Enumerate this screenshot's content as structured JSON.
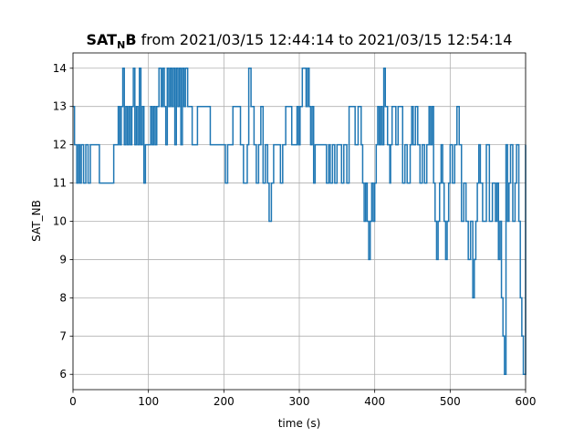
{
  "chart_data": {
    "type": "line",
    "title": {
      "bold_main": "SAT",
      "bold_sub": "N",
      "bold_tail": "B",
      "rest": " from 2021/03/15 12:44:14 to 2021/03/15 12:54:14"
    },
    "xlabel": "time (s)",
    "ylabel": "SAT_NB",
    "xlim": [
      0,
      600
    ],
    "ylim": [
      5.6,
      14.4
    ],
    "xticks": [
      0,
      100,
      200,
      300,
      400,
      500,
      600
    ],
    "yticks": [
      6,
      7,
      8,
      9,
      10,
      11,
      12,
      13,
      14
    ],
    "grid": true,
    "line_color": "#1f77b4",
    "step": true,
    "series": [
      {
        "points": [
          [
            0,
            13
          ],
          [
            2,
            12
          ],
          [
            5,
            11
          ],
          [
            7,
            12
          ],
          [
            9,
            11
          ],
          [
            11,
            12
          ],
          [
            14,
            11
          ],
          [
            17,
            12
          ],
          [
            20,
            11
          ],
          [
            23,
            12
          ],
          [
            35,
            11
          ],
          [
            54,
            12
          ],
          [
            60,
            13
          ],
          [
            62,
            12
          ],
          [
            64,
            13
          ],
          [
            66,
            14
          ],
          [
            68,
            12
          ],
          [
            70,
            13
          ],
          [
            72,
            12
          ],
          [
            74,
            13
          ],
          [
            76,
            12
          ],
          [
            78,
            13
          ],
          [
            80,
            14
          ],
          [
            82,
            12
          ],
          [
            84,
            13
          ],
          [
            86,
            12
          ],
          [
            88,
            14
          ],
          [
            90,
            12
          ],
          [
            92,
            13
          ],
          [
            94,
            11
          ],
          [
            96,
            12
          ],
          [
            103,
            13
          ],
          [
            105,
            12
          ],
          [
            107,
            13
          ],
          [
            109,
            12
          ],
          [
            111,
            13
          ],
          [
            114,
            14
          ],
          [
            117,
            13
          ],
          [
            119,
            14
          ],
          [
            121,
            13
          ],
          [
            123,
            12
          ],
          [
            125,
            14
          ],
          [
            127,
            13
          ],
          [
            129,
            14
          ],
          [
            131,
            13
          ],
          [
            133,
            14
          ],
          [
            135,
            12
          ],
          [
            137,
            14
          ],
          [
            139,
            13
          ],
          [
            141,
            14
          ],
          [
            143,
            12
          ],
          [
            145,
            14
          ],
          [
            147,
            13
          ],
          [
            149,
            14
          ],
          [
            152,
            13
          ],
          [
            158,
            12
          ],
          [
            165,
            13
          ],
          [
            182,
            12
          ],
          [
            202,
            11
          ],
          [
            205,
            12
          ],
          [
            212,
            13
          ],
          [
            222,
            12
          ],
          [
            226,
            11
          ],
          [
            231,
            12
          ],
          [
            233,
            14
          ],
          [
            236,
            13
          ],
          [
            240,
            12
          ],
          [
            243,
            11
          ],
          [
            246,
            12
          ],
          [
            249,
            13
          ],
          [
            252,
            11
          ],
          [
            255,
            12
          ],
          [
            258,
            11
          ],
          [
            260,
            10
          ],
          [
            263,
            11
          ],
          [
            266,
            12
          ],
          [
            275,
            11
          ],
          [
            278,
            12
          ],
          [
            282,
            13
          ],
          [
            290,
            12
          ],
          [
            297,
            13
          ],
          [
            299,
            12
          ],
          [
            301,
            13
          ],
          [
            304,
            14
          ],
          [
            309,
            13
          ],
          [
            311,
            14
          ],
          [
            313,
            13
          ],
          [
            315,
            12
          ],
          [
            317,
            13
          ],
          [
            319,
            11
          ],
          [
            321,
            12
          ],
          [
            336,
            11
          ],
          [
            339,
            12
          ],
          [
            341,
            11
          ],
          [
            344,
            12
          ],
          [
            347,
            11
          ],
          [
            350,
            12
          ],
          [
            356,
            11
          ],
          [
            359,
            12
          ],
          [
            363,
            11
          ],
          [
            366,
            13
          ],
          [
            374,
            12
          ],
          [
            378,
            13
          ],
          [
            382,
            12
          ],
          [
            384,
            11
          ],
          [
            386,
            10
          ],
          [
            388,
            11
          ],
          [
            390,
            10
          ],
          [
            392,
            9
          ],
          [
            394,
            10
          ],
          [
            396,
            11
          ],
          [
            398,
            10
          ],
          [
            400,
            11
          ],
          [
            402,
            12
          ],
          [
            404,
            13
          ],
          [
            406,
            12
          ],
          [
            408,
            13
          ],
          [
            410,
            12
          ],
          [
            412,
            14
          ],
          [
            414,
            13
          ],
          [
            417,
            12
          ],
          [
            420,
            11
          ],
          [
            421,
            12
          ],
          [
            423,
            13
          ],
          [
            428,
            12
          ],
          [
            431,
            13
          ],
          [
            437,
            11
          ],
          [
            440,
            12
          ],
          [
            443,
            11
          ],
          [
            447,
            12
          ],
          [
            449,
            13
          ],
          [
            451,
            12
          ],
          [
            454,
            13
          ],
          [
            457,
            12
          ],
          [
            460,
            11
          ],
          [
            463,
            12
          ],
          [
            466,
            11
          ],
          [
            469,
            12
          ],
          [
            472,
            13
          ],
          [
            474,
            12
          ],
          [
            476,
            13
          ],
          [
            478,
            11
          ],
          [
            480,
            10
          ],
          [
            482,
            9
          ],
          [
            484,
            10
          ],
          [
            486,
            11
          ],
          [
            488,
            12
          ],
          [
            490,
            11
          ],
          [
            492,
            10
          ],
          [
            494,
            9
          ],
          [
            496,
            10
          ],
          [
            498,
            11
          ],
          [
            500,
            12
          ],
          [
            503,
            11
          ],
          [
            506,
            12
          ],
          [
            509,
            13
          ],
          [
            512,
            12
          ],
          [
            515,
            10
          ],
          [
            518,
            11
          ],
          [
            521,
            10
          ],
          [
            524,
            9
          ],
          [
            527,
            10
          ],
          [
            530,
            8
          ],
          [
            532,
            9
          ],
          [
            534,
            10
          ],
          [
            536,
            11
          ],
          [
            538,
            12
          ],
          [
            540,
            11
          ],
          [
            543,
            10
          ],
          [
            548,
            12
          ],
          [
            552,
            10
          ],
          [
            556,
            11
          ],
          [
            560,
            10
          ],
          [
            562,
            11
          ],
          [
            564,
            9
          ],
          [
            566,
            10
          ],
          [
            568,
            8
          ],
          [
            570,
            7
          ],
          [
            572,
            6
          ],
          [
            574,
            12
          ],
          [
            576,
            10
          ],
          [
            578,
            11
          ],
          [
            580,
            12
          ],
          [
            583,
            10
          ],
          [
            586,
            11
          ],
          [
            588,
            12
          ],
          [
            591,
            10
          ],
          [
            593,
            8
          ],
          [
            595,
            7
          ],
          [
            597,
            6
          ],
          [
            600,
            12
          ]
        ]
      }
    ]
  }
}
